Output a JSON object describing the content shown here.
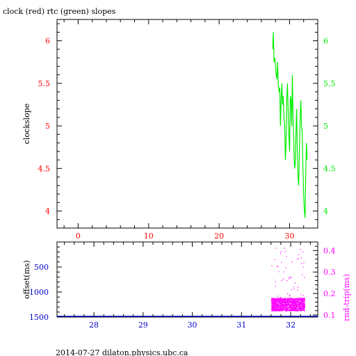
{
  "title": "clock (red) rtc (green) slopes",
  "footer": "2014-07-27  dilaton.physics.ubc.ca",
  "colors": {
    "axes": "#000000",
    "clock": "#ff0000",
    "rtc": "#00ee00",
    "offset_axis": "#0000cc",
    "rnd_trip": "#ff00ff"
  },
  "chart_data": [
    {
      "type": "line",
      "title": "clock (red) rtc (green) slopes",
      "ylabel": "clockslope",
      "xlim": [
        -3,
        34
      ],
      "ylim": [
        3.8,
        6.25
      ],
      "x_ticks": [
        0,
        10,
        20,
        30
      ],
      "y_ticks": [
        4,
        4.5,
        5,
        5.5,
        6
      ],
      "y_tick_labels": [
        "4",
        "4.5",
        "5",
        "5.5",
        "6"
      ],
      "right_y_tick_labels": [
        "4",
        "4.5",
        "5",
        "5.5",
        "6"
      ],
      "grid": false,
      "series": [
        {
          "color": "#00ee00",
          "x": [
            27.6,
            27.7,
            27.8,
            27.9,
            28.0,
            28.1,
            28.2,
            28.3,
            28.4,
            28.5,
            28.6,
            28.7,
            28.8,
            28.9,
            29.0,
            29.1,
            29.2,
            29.3,
            29.4,
            29.5,
            29.6,
            29.7,
            29.8,
            29.9,
            30.0,
            30.1,
            30.2,
            30.3,
            30.4,
            30.5,
            30.6,
            30.7,
            30.8,
            30.9,
            31.0,
            31.1,
            31.2,
            31.3,
            31.4,
            31.5,
            31.6,
            31.7,
            31.8,
            31.9,
            32.0,
            32.1,
            32.2,
            32.3,
            32.4,
            32.5
          ],
          "values": [
            5.9,
            6.1,
            5.75,
            5.8,
            5.7,
            5.6,
            5.55,
            5.75,
            5.5,
            5.4,
            5.45,
            5.0,
            5.3,
            5.5,
            5.25,
            5.35,
            5.1,
            5.0,
            4.6,
            4.8,
            5.3,
            5.5,
            5.2,
            4.9,
            4.7,
            5.35,
            5.3,
            5.0,
            5.6,
            5.1,
            4.8,
            4.5,
            4.55,
            4.9,
            5.2,
            4.7,
            4.4,
            4.3,
            4.7,
            5.1,
            5.3,
            5.0,
            4.9,
            4.5,
            4.2,
            4.0,
            3.92,
            4.5,
            4.8,
            4.6
          ]
        }
      ]
    },
    {
      "type": "scatter",
      "ylabel": "offset(ms)",
      "right_ylabel": "rnd-trip(ms)",
      "xlim": [
        27.25,
        32.55
      ],
      "ylim": [
        1500,
        0
      ],
      "right_ylim": [
        0.09,
        0.44
      ],
      "x_ticks": [
        28,
        29,
        30,
        31,
        32
      ],
      "x_tick_labels": [
        "28",
        "29",
        "30",
        "31",
        "32"
      ],
      "y_ticks": [
        500,
        1000,
        1500
      ],
      "y_tick_labels": [
        "500",
        "1000",
        "1500"
      ],
      "right_y_ticks": [
        0.1,
        0.2,
        0.3,
        0.4
      ],
      "right_y_tick_labels": [
        "0.1",
        "0.2",
        "0.3",
        "0.4"
      ],
      "grid": false,
      "series": [
        {
          "color": "#ff00ff",
          "x_range": [
            31.6,
            32.28
          ],
          "typical_range": [
            0.12,
            0.18
          ],
          "outlier_max": 0.42
        },
        {
          "color": "#0000cc",
          "x_range": [
            27.25,
            32.55
          ],
          "value": 1500
        }
      ]
    }
  ]
}
